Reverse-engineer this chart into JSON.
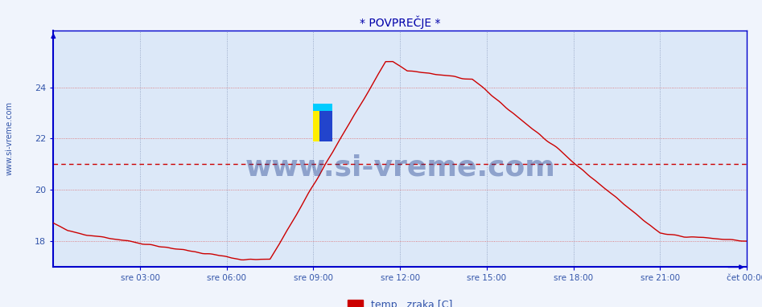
{
  "title": "* POVPREČJE *",
  "ylabel_text": "www.si-vreme.com",
  "legend_label": "temp.  zraka [C]",
  "legend_color": "#cc0000",
  "x_tick_labels": [
    "sre 03:00",
    "sre 06:00",
    "sre 09:00",
    "sre 12:00",
    "sre 15:00",
    "sre 18:00",
    "sre 21:00",
    "čet 00:00"
  ],
  "x_tick_positions": [
    3,
    6,
    9,
    12,
    15,
    18,
    21,
    24
  ],
  "ylim_min": 17.0,
  "ylim_max": 26.2,
  "xlim_min": 0,
  "xlim_max": 24,
  "yticks": [
    18,
    20,
    22,
    24
  ],
  "fig_background": "#f0f4fc",
  "plot_background": "#dce8f8",
  "grid_color_h_red": "#dd6666",
  "grid_color_v_blue": "#8899bb",
  "axis_color": "#0000cc",
  "title_color": "#0000aa",
  "tick_label_color": "#3355aa",
  "watermark_text": "www.si-vreme.com",
  "watermark_color": "#1a3a8a",
  "dashed_line_y": 21.0,
  "dashed_line_color": "#cc0000",
  "line_color": "#cc0000",
  "line_width": 1.0
}
